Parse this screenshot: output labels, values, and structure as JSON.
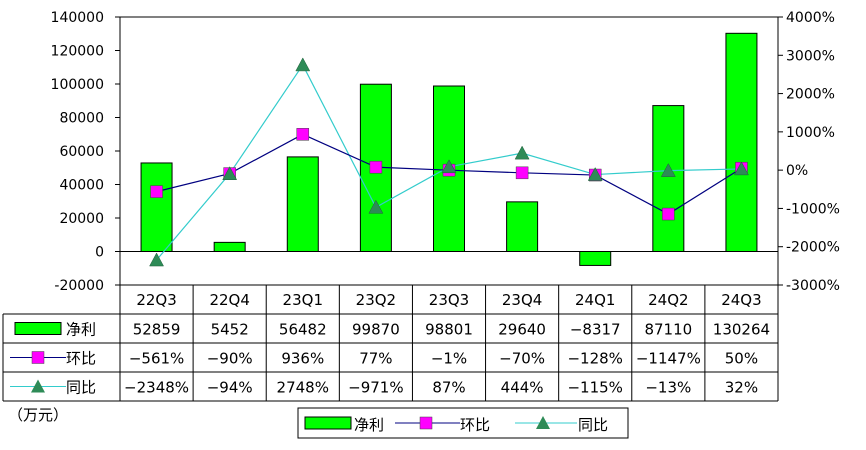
{
  "unit_label": "（万元）",
  "chart_data": {
    "type": "bar",
    "categories": [
      "22Q3",
      "22Q4",
      "23Q1",
      "23Q2",
      "23Q3",
      "23Q4",
      "24Q1",
      "24Q2",
      "24Q3"
    ],
    "series": [
      {
        "name": "净利",
        "kind": "bar",
        "axis": "left",
        "color": "#00ff00",
        "values": [
          52859,
          5452,
          56482,
          99870,
          98801,
          29640,
          -8317,
          87110,
          130264
        ],
        "labels": [
          "52859",
          "5452",
          "56482",
          "99870",
          "98801",
          "29640",
          "-8317",
          "87110",
          "130264"
        ]
      },
      {
        "name": "环比",
        "kind": "line",
        "axis": "right",
        "color": "#000080",
        "marker": "square",
        "marker_color": "#ff00ff",
        "values": [
          -561,
          -90,
          936,
          77,
          -1,
          -70,
          -128,
          -1147,
          50
        ],
        "labels": [
          "-561%",
          "-90%",
          "936%",
          "77%",
          "-1%",
          "-70%",
          "-128%",
          "-1147%",
          "50%"
        ]
      },
      {
        "name": "同比",
        "kind": "line",
        "axis": "right",
        "color": "#33cccc",
        "marker": "triangle",
        "marker_color": "#2e8b57",
        "values": [
          -2348,
          -94,
          2748,
          -971,
          87,
          444,
          -115,
          -13,
          32
        ],
        "labels": [
          "-2348%",
          "-94%",
          "2748%",
          "-971%",
          "87%",
          "444%",
          "-115%",
          "-13%",
          "32%"
        ]
      }
    ],
    "y_left": {
      "min": -20000,
      "max": 140000,
      "step": 20000,
      "ticks": [
        "140000",
        "120000",
        "100000",
        "80000",
        "60000",
        "40000",
        "20000",
        "0",
        "-20000"
      ]
    },
    "y_right": {
      "min": -3000,
      "max": 4000,
      "step": 1000,
      "ticks": [
        "4000%",
        "3000%",
        "2000%",
        "1000%",
        "0%",
        "-1000%",
        "-2000%",
        "-3000%"
      ]
    },
    "legend": {
      "placement": "bottom-center",
      "items": [
        "净利",
        "环比",
        "同比"
      ]
    },
    "data_table": true,
    "grid": false
  }
}
